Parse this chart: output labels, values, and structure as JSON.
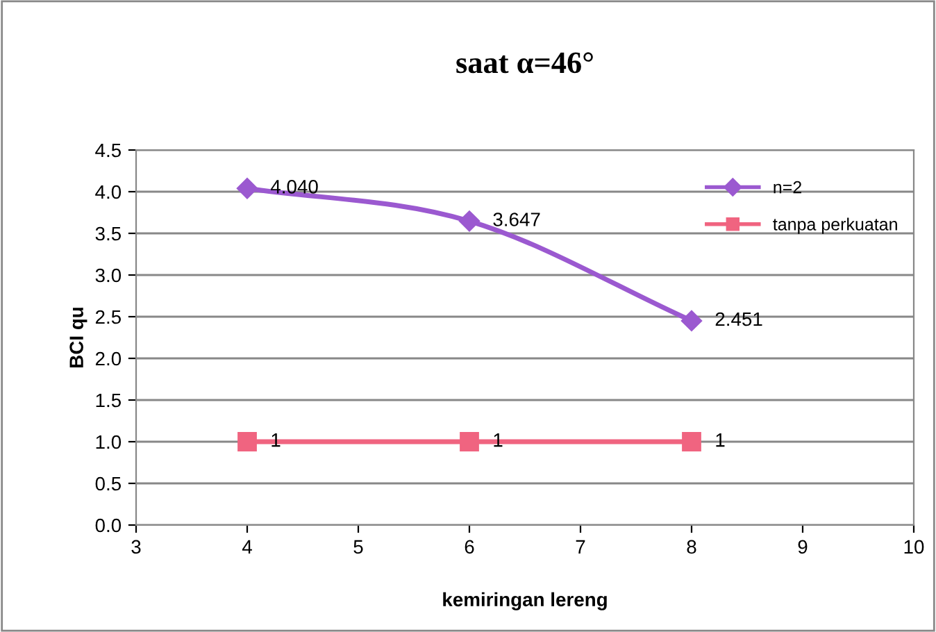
{
  "chart_data": {
    "type": "line",
    "title": "saat α=46°",
    "xlabel": "kemiringan lereng",
    "ylabel": "BCI qu",
    "x": [
      4,
      6,
      8
    ],
    "series": [
      {
        "name": "n=2",
        "color": "#9b59d0",
        "values": [
          4.04,
          3.647,
          2.451
        ],
        "marker": "diamond",
        "value_labels": [
          "4.040",
          "3.647",
          "2.451"
        ]
      },
      {
        "name": "tanpa perkuatan",
        "color": "#f06480",
        "values": [
          1,
          1,
          1
        ],
        "marker": "square",
        "value_labels": [
          "1",
          "1",
          "1"
        ]
      }
    ],
    "xlim": [
      3,
      10
    ],
    "xticks": [
      3,
      4,
      5,
      6,
      7,
      8,
      9,
      10
    ],
    "ylim": [
      0,
      4.5
    ],
    "yticks": [
      {
        "value": 0,
        "label": "0.0"
      },
      {
        "value": 0.5,
        "label": "0.5"
      },
      {
        "value": 1,
        "label": "1.0"
      },
      {
        "value": 1.5,
        "label": "1.5"
      },
      {
        "value": 2,
        "label": "2.0"
      },
      {
        "value": 2.5,
        "label": "2.5"
      },
      {
        "value": 3,
        "label": "3.0"
      },
      {
        "value": 3.5,
        "label": "3.5"
      },
      {
        "value": 4,
        "label": "4.0"
      },
      {
        "value": 4.5,
        "label": "4.5"
      }
    ],
    "grid": "y",
    "legend": "top right"
  }
}
